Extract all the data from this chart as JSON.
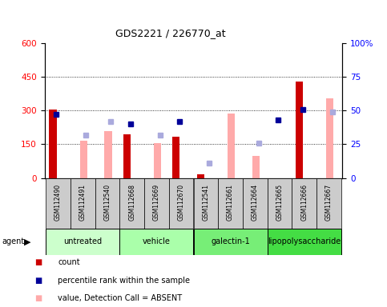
{
  "title": "GDS2221 / 226770_at",
  "samples": [
    "GSM112490",
    "GSM112491",
    "GSM112540",
    "GSM112668",
    "GSM112669",
    "GSM112670",
    "GSM112541",
    "GSM112661",
    "GSM112664",
    "GSM112665",
    "GSM112666",
    "GSM112667"
  ],
  "groups": [
    {
      "label": "untreated",
      "count": 3,
      "color": "#ccffcc"
    },
    {
      "label": "vehicle",
      "count": 3,
      "color": "#aaffaa"
    },
    {
      "label": "galectin-1",
      "count": 3,
      "color": "#77ee77"
    },
    {
      "label": "lipopolysaccharide",
      "count": 3,
      "color": "#44dd44"
    }
  ],
  "count_values": [
    305,
    null,
    null,
    195,
    null,
    185,
    18,
    null,
    null,
    null,
    430,
    null
  ],
  "percentile_values": [
    47,
    null,
    null,
    40,
    null,
    42,
    null,
    null,
    null,
    43,
    51,
    null
  ],
  "absent_value_values": [
    null,
    165,
    210,
    null,
    155,
    null,
    null,
    285,
    100,
    null,
    null,
    355
  ],
  "absent_rank_values": [
    null,
    32,
    42,
    null,
    32,
    null,
    11,
    null,
    26,
    null,
    null,
    49
  ],
  "ylim_left": [
    0,
    600
  ],
  "ylim_right": [
    0,
    100
  ],
  "yticks_left": [
    0,
    150,
    300,
    450,
    600
  ],
  "ytick_labels_left": [
    "0",
    "150",
    "300",
    "450",
    "600"
  ],
  "yticks_right": [
    0,
    25,
    50,
    75,
    100
  ],
  "ytick_labels_right": [
    "0",
    "25",
    "50",
    "75",
    "100%"
  ],
  "count_color": "#cc0000",
  "percentile_color": "#000099",
  "absent_value_color": "#ffaaaa",
  "absent_rank_color": "#aaaadd",
  "bar_width": 0.35,
  "marker_size": 5
}
